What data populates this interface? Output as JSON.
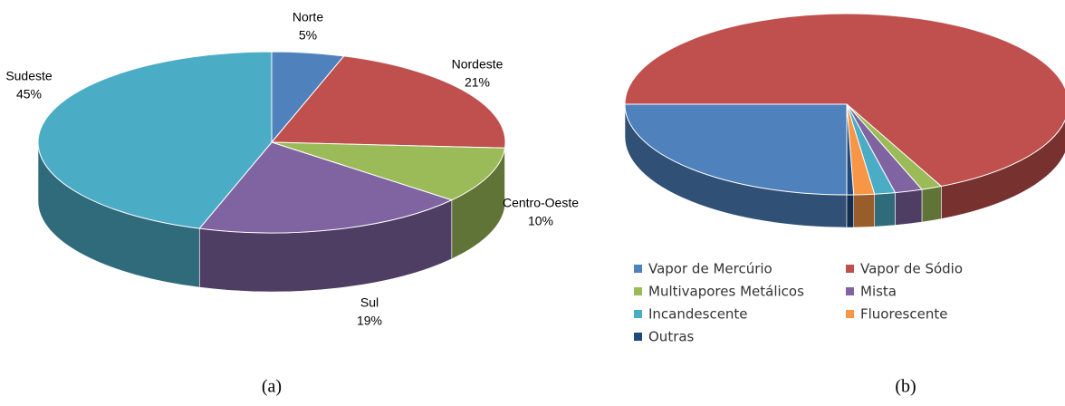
{
  "chart_data": [
    {
      "type": "pie3d",
      "caption": "(a)",
      "categories": [
        "Norte",
        "Nordeste",
        "Centro-Oeste",
        "Sul",
        "Sudeste"
      ],
      "values": [
        5,
        21,
        10,
        19,
        45
      ],
      "value_labels": [
        "5%",
        "21%",
        "10%",
        "19%",
        "45%"
      ],
      "colors": [
        "#4f81bd",
        "#c0504d",
        "#9bbb59",
        "#8064a2",
        "#4bacc6"
      ],
      "legend": false
    },
    {
      "type": "pie3d",
      "caption": "(b)",
      "categories": [
        "Vapor de Mercúrio",
        "Vapor de Sódio",
        "Multivapores Metálicos",
        "Mista",
        "Incandescente",
        "Fluorescente",
        "Outras"
      ],
      "values": [
        25,
        68,
        1.5,
        2,
        1.5,
        1.5,
        0.5
      ],
      "colors": [
        "#4f81bd",
        "#c0504d",
        "#9bbb59",
        "#8064a2",
        "#4bacc6",
        "#f79646",
        "#1f497d"
      ],
      "legend": true
    }
  ]
}
